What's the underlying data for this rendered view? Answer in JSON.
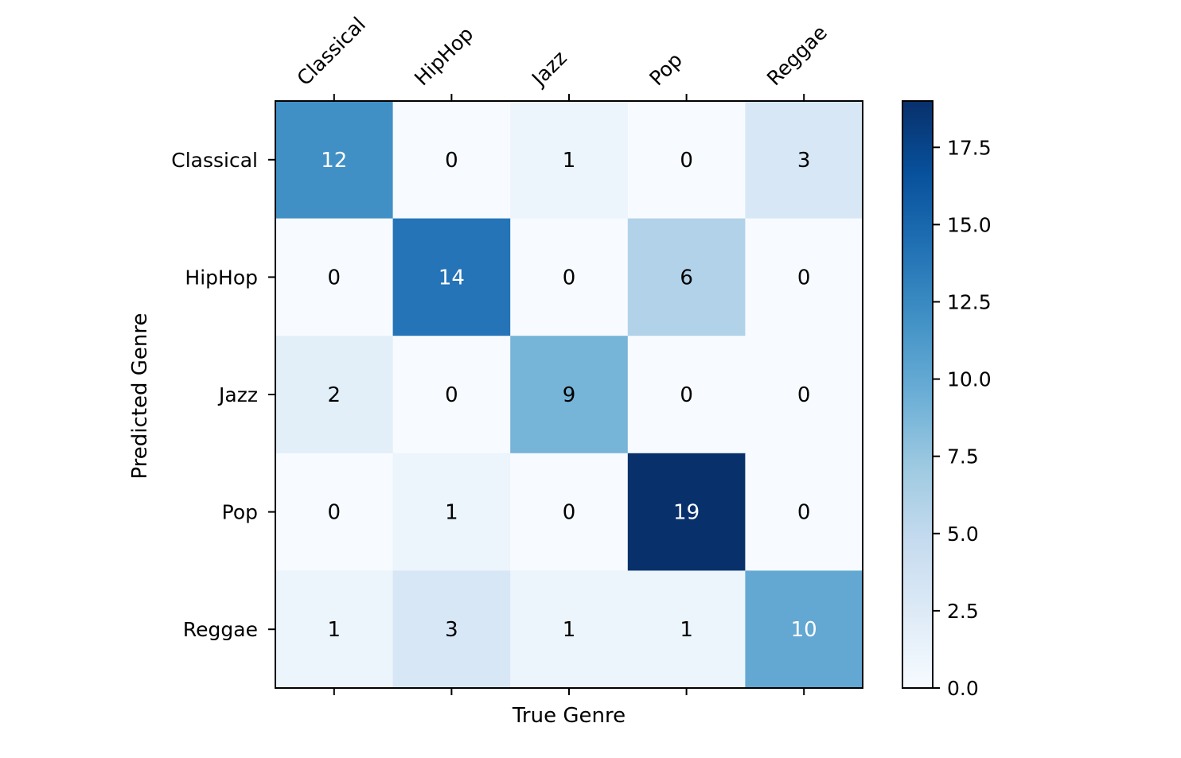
{
  "chart_data": {
    "type": "heatmap",
    "title": "",
    "xlabel": "True Genre",
    "ylabel": "Predicted Genre",
    "x_categories": [
      "Classical",
      "HipHop",
      "Jazz",
      "Pop",
      "Reggae"
    ],
    "y_categories": [
      "Classical",
      "HipHop",
      "Jazz",
      "Pop",
      "Reggae"
    ],
    "values": [
      [
        12,
        0,
        1,
        0,
        3
      ],
      [
        0,
        14,
        0,
        6,
        0
      ],
      [
        2,
        0,
        9,
        0,
        0
      ],
      [
        0,
        1,
        0,
        19,
        0
      ],
      [
        1,
        3,
        1,
        1,
        10
      ]
    ],
    "colormap": "Blues",
    "colormap_stops": [
      "#f7fbff",
      "#deebf7",
      "#c6dbef",
      "#9ecae1",
      "#6baed6",
      "#4292c6",
      "#2171b5",
      "#08519c",
      "#08306b"
    ],
    "vmin": 0,
    "vmax": 19,
    "colorbar_ticks": [
      "0.0",
      "2.5",
      "5.0",
      "7.5",
      "10.0",
      "12.5",
      "15.0",
      "17.5"
    ],
    "x_tick_rotation_deg": 45,
    "x_tick_position": "top",
    "grid": false,
    "text_color_dark": "#000000",
    "text_color_light": "#ffffff"
  }
}
